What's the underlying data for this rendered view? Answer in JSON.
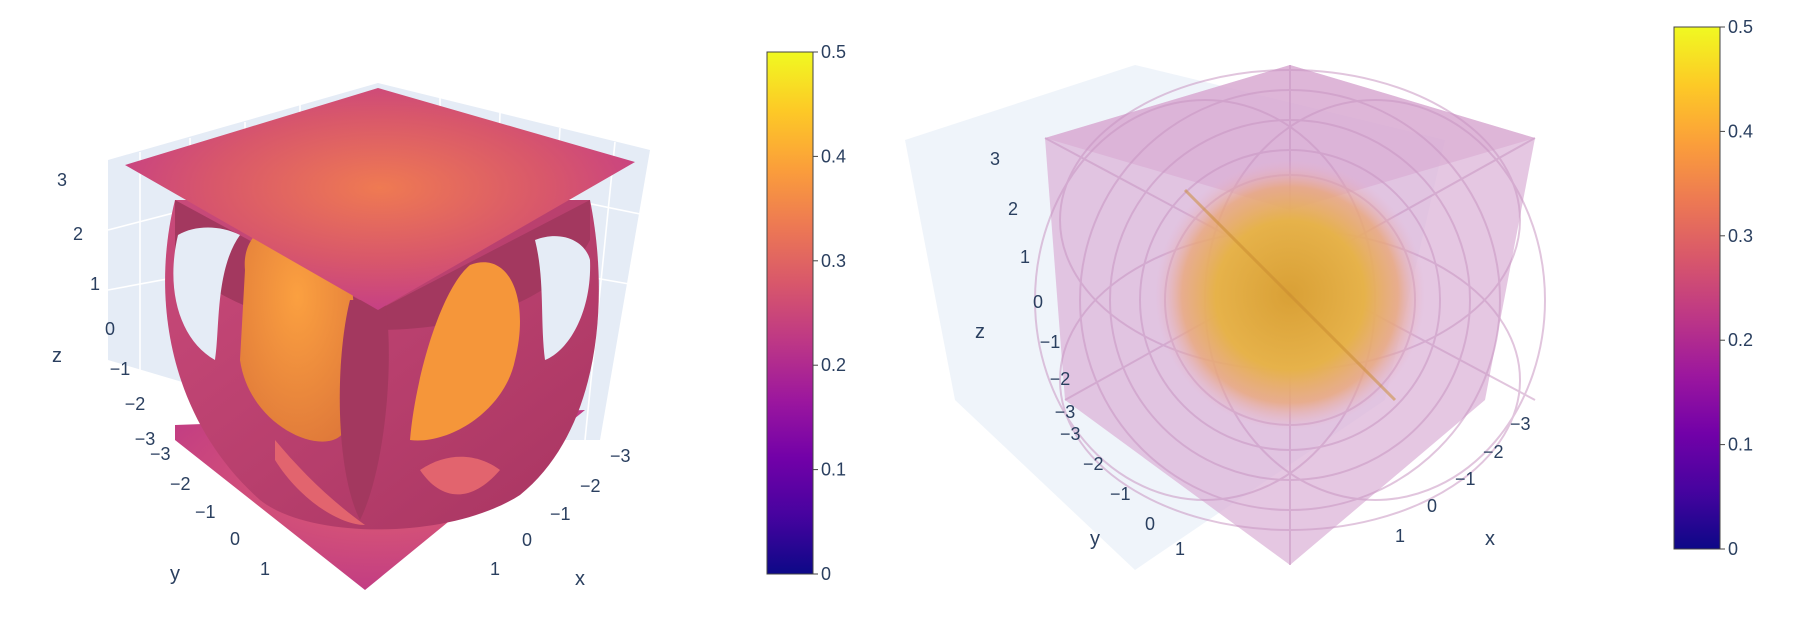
{
  "chart_data": [
    {
      "type": "isosurface",
      "view": "opaque",
      "axes": {
        "x": {
          "label": "x",
          "ticks": [
            "−3",
            "−2",
            "−1",
            "0",
            "1"
          ]
        },
        "y": {
          "label": "y",
          "ticks": [
            "−3",
            "−2",
            "−1",
            "0",
            "1"
          ]
        },
        "z": {
          "label": "z",
          "ticks": [
            "−3",
            "−2",
            "−1",
            "0",
            "1",
            "2",
            "3"
          ]
        },
        "range": [
          -3.2,
          3.2
        ]
      },
      "colorscale": {
        "name": "plasma",
        "min": 0,
        "max": 0.5,
        "ticks": [
          "0",
          "0.1",
          "0.2",
          "0.3",
          "0.4",
          "0.5"
        ]
      },
      "colors": [
        "#0d0887",
        "#46039f",
        "#7201a8",
        "#9c179e",
        "#bd3786",
        "#d8576b",
        "#ed7953",
        "#fb9f3a",
        "#fdca26",
        "#f0f921"
      ]
    },
    {
      "type": "volume",
      "view": "translucent",
      "axes": {
        "x": {
          "label": "x",
          "ticks": [
            "−3",
            "−2",
            "−1",
            "0",
            "1"
          ]
        },
        "y": {
          "label": "y",
          "ticks": [
            "−3",
            "−2",
            "−1",
            "0",
            "1"
          ]
        },
        "z": {
          "label": "z",
          "ticks": [
            "−3",
            "−2",
            "−1",
            "0",
            "1",
            "2",
            "3"
          ]
        },
        "range": [
          -3.2,
          3.2
        ]
      },
      "colorscale": {
        "name": "plasma",
        "min": 0,
        "max": 0.5,
        "ticks": [
          "0",
          "0.1",
          "0.2",
          "0.3",
          "0.4",
          "0.5"
        ]
      },
      "colors": [
        "#0d0887",
        "#46039f",
        "#7201a8",
        "#9c179e",
        "#bd3786",
        "#d8576b",
        "#ed7953",
        "#fb9f3a",
        "#fdca26",
        "#f0f921"
      ]
    }
  ]
}
